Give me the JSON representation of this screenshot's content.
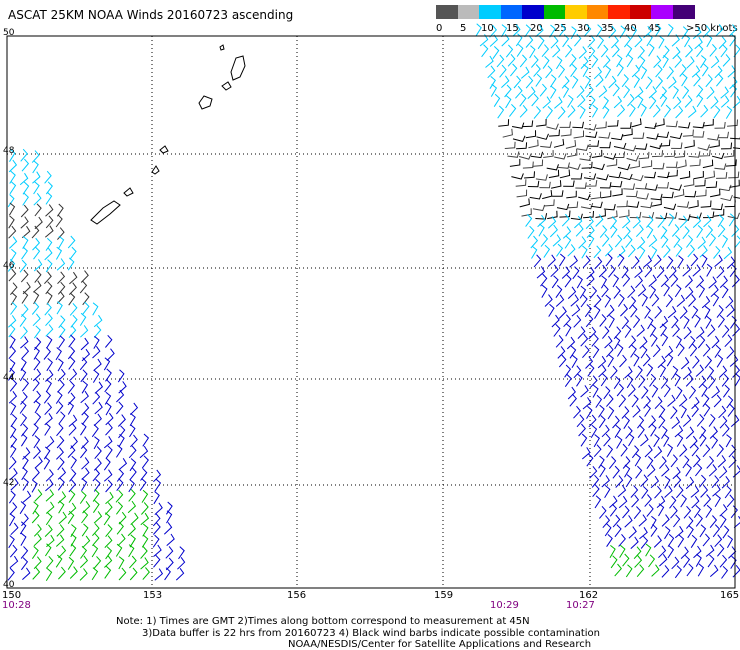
{
  "title": "ASCAT 25KM NOAA Winds 20160723 ascending",
  "legend": {
    "labels": [
      "0",
      "5",
      "10",
      "15",
      "20",
      "25",
      "30",
      "35",
      "40",
      "45",
      ">50 knots"
    ],
    "colors": [
      "#555555",
      "#bbbbbb",
      "#00ccff",
      "#0066ff",
      "#0000cc",
      "#00bb00",
      "#ffcc00",
      "#ff8800",
      "#ff2200",
      "#cc0000",
      "#aa00ff",
      "#440077"
    ]
  },
  "axes": {
    "lat_labels": [
      "50",
      "48",
      "46",
      "44",
      "42",
      "40"
    ],
    "lon_labels": [
      "150",
      "153",
      "156",
      "159",
      "162",
      "165"
    ]
  },
  "times": [
    "10:28",
    "10:29",
    "10:27"
  ],
  "notes": {
    "line1": "Note: 1) Times are GMT 2)Times along bottom correspond to measurement at 45N",
    "line2": "3)Data buffer is 22 hrs from 20160723 4) Black wind barbs indicate possible contamination",
    "line3": "NOAA/NESDIS/Center for Satellite Applications and Research"
  },
  "swath_colors": {
    "contaminated": "#000000",
    "light": "#00ccff",
    "moderate": "#0000cc",
    "fresh": "#00bb00"
  }
}
